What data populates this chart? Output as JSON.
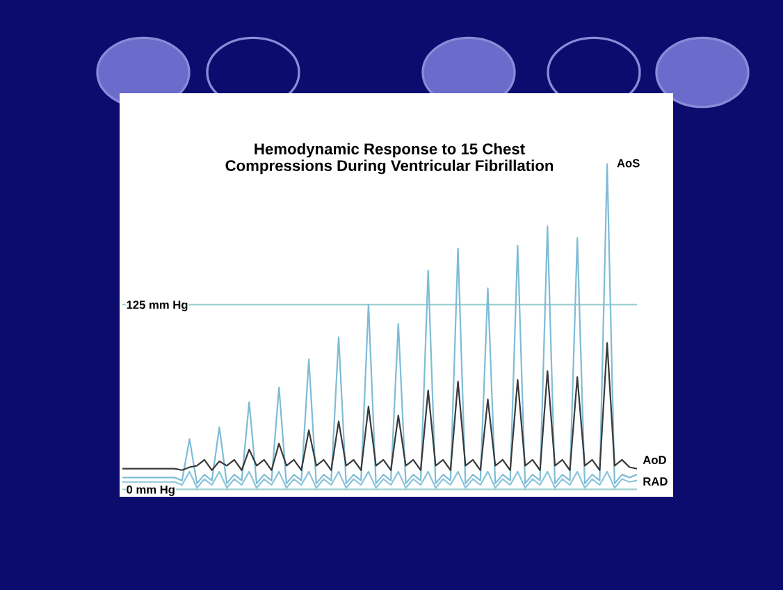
{
  "chart_data": {
    "type": "line",
    "title": "Hemodynamic Response to 15 Chest\nCompressions During Ventricular Fibrillation",
    "categories": [
      null,
      null,
      null,
      null,
      null,
      null,
      null,
      null,
      null,
      null,
      null,
      null,
      null,
      null,
      null,
      null,
      null,
      null,
      null,
      null,
      null,
      null,
      null,
      null,
      null,
      null,
      null,
      null,
      null,
      null,
      null,
      null,
      null,
      null,
      null,
      null,
      null,
      null,
      null,
      null,
      null,
      null,
      null,
      null,
      null,
      null,
      null,
      null,
      null,
      null,
      null,
      null,
      null,
      null,
      null,
      null,
      null,
      null,
      null,
      null,
      null,
      null,
      null,
      null,
      null,
      null,
      null,
      null,
      null,
      null
    ],
    "series": [
      {
        "name": "AoS",
        "color": "#7fbcd6",
        "values": [
          8,
          8,
          8,
          8,
          8,
          8,
          8,
          8,
          6,
          34,
          4,
          10,
          6,
          42,
          4,
          10,
          6,
          59,
          4,
          10,
          6,
          69,
          4,
          10,
          6,
          88,
          4,
          10,
          6,
          103,
          4,
          10,
          6,
          125,
          4,
          10,
          6,
          112,
          4,
          10,
          6,
          148,
          4,
          10,
          6,
          163,
          4,
          10,
          6,
          136,
          4,
          10,
          6,
          165,
          4,
          10,
          6,
          178,
          4,
          10,
          6,
          170,
          4,
          10,
          6,
          220,
          4,
          10,
          8,
          10
        ]
      },
      {
        "name": "AoD",
        "color": "#3a3a3a",
        "values": [
          14,
          14,
          14,
          14,
          14,
          14,
          14,
          14,
          13,
          15,
          16,
          20,
          13,
          19,
          16,
          20,
          13,
          27,
          16,
          20,
          13,
          31,
          16,
          20,
          13,
          40,
          16,
          20,
          13,
          46,
          16,
          20,
          13,
          56,
          16,
          20,
          13,
          50,
          16,
          20,
          13,
          67,
          16,
          20,
          13,
          73,
          16,
          20,
          13,
          61,
          16,
          20,
          13,
          74,
          16,
          20,
          13,
          80,
          16,
          20,
          13,
          76,
          16,
          20,
          13,
          99,
          16,
          20,
          15,
          14
        ]
      },
      {
        "name": "RAD",
        "color": "#8cc4dc",
        "values": [
          5,
          5,
          5,
          5,
          5,
          5,
          5,
          5,
          3,
          12,
          1,
          7,
          3,
          12,
          1,
          7,
          3,
          12,
          1,
          7,
          3,
          12,
          1,
          7,
          3,
          12,
          1,
          7,
          3,
          12,
          1,
          7,
          3,
          12,
          1,
          7,
          3,
          12,
          1,
          7,
          3,
          12,
          1,
          7,
          3,
          12,
          1,
          7,
          3,
          12,
          1,
          7,
          3,
          12,
          1,
          7,
          3,
          12,
          1,
          7,
          3,
          12,
          1,
          7,
          3,
          12,
          1,
          7,
          5,
          6
        ]
      }
    ],
    "ylim": [
      -5,
      268
    ],
    "yticks": [
      {
        "value": 0,
        "label": "0 mm Hg"
      },
      {
        "value": 125,
        "label": "125 mm Hg"
      }
    ],
    "tick_labels": "y",
    "grid": "y"
  }
}
